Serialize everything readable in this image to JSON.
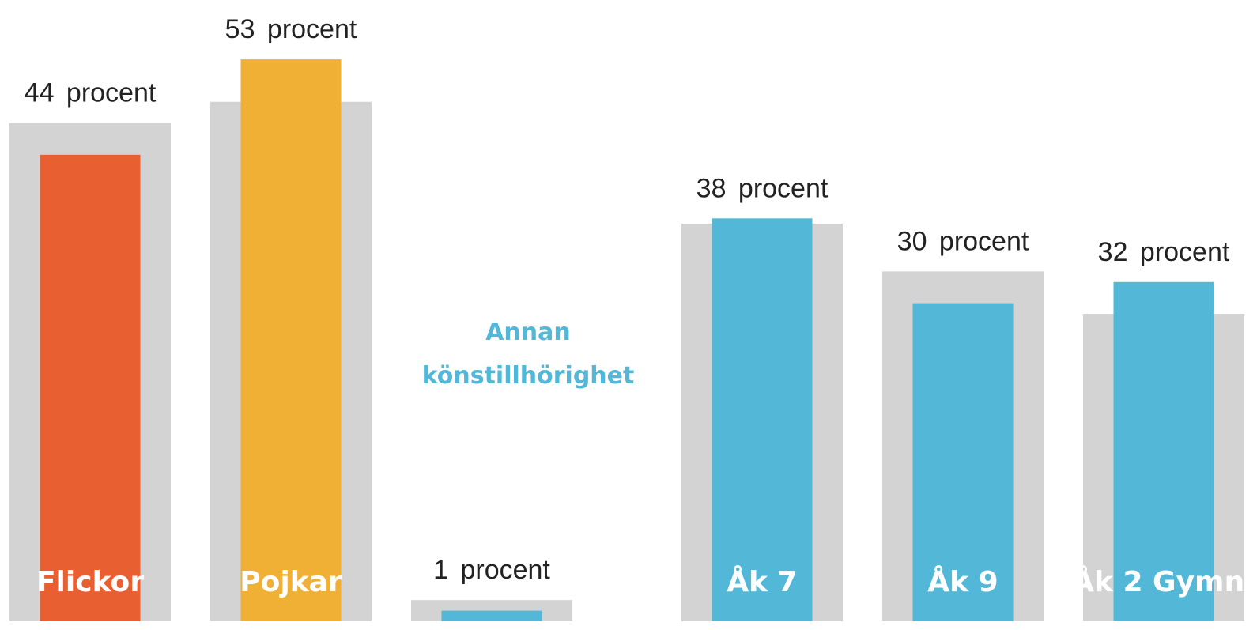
{
  "chart_data": {
    "type": "bar",
    "categories": [
      "Flickor",
      "Pojkar",
      "Annan könstillhörighet",
      "Åk 7",
      "Åk 9",
      "Åk 2 Gymn."
    ],
    "ylim": [
      0,
      58.6
    ],
    "series": [
      {
        "color": "#d3d3d3",
        "values": [
          47,
          49,
          2,
          37.5,
          33,
          29
        ]
      },
      {
        "colors": [
          "#e86032",
          "#f0af35",
          "#53b8d7",
          "#53b8d7",
          "#53b8d7",
          "#53b8d7"
        ],
        "values": [
          44,
          53,
          1,
          38,
          30,
          32
        ],
        "value_labels": [
          "44 procent",
          "53 procent",
          "1 procent",
          "38 procent",
          "30 procent",
          "32 procent"
        ]
      }
    ]
  }
}
